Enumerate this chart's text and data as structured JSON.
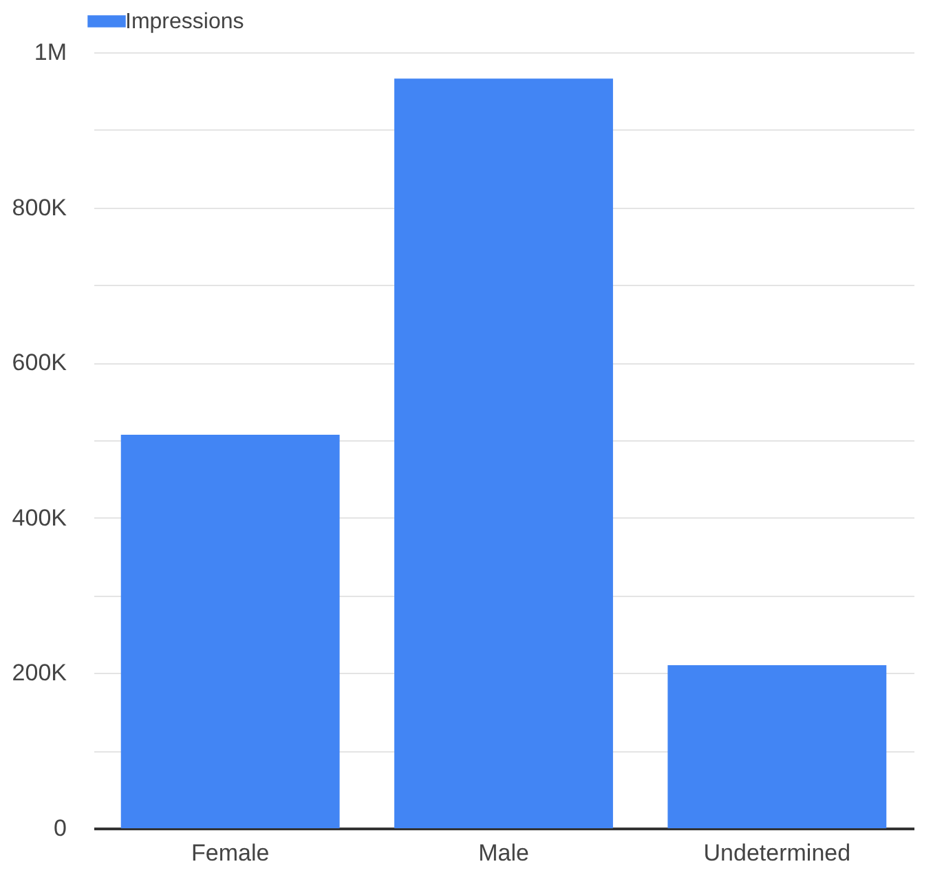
{
  "chart_data": {
    "type": "bar",
    "categories": [
      "Female",
      "Male",
      "Undetermined"
    ],
    "series": [
      {
        "name": "Impressions",
        "color": "#4285f4",
        "values": [
          507000,
          966000,
          210000
        ]
      }
    ],
    "ylim": [
      0,
      1000000
    ],
    "yticks": [
      0,
      {
        "value": 100000,
        "label": null
      },
      {
        "value": 200000,
        "label": "200K"
      },
      {
        "value": 300000,
        "label": null
      },
      {
        "value": 400000,
        "label": "400K"
      },
      {
        "value": 500000,
        "label": null
      },
      {
        "value": 600000,
        "label": "600K"
      },
      {
        "value": 700000,
        "label": null
      },
      {
        "value": 800000,
        "label": "800K"
      },
      {
        "value": 900000,
        "label": null
      },
      {
        "value": 1000000,
        "label": "1M"
      }
    ],
    "grid": true,
    "legend": "top left"
  }
}
